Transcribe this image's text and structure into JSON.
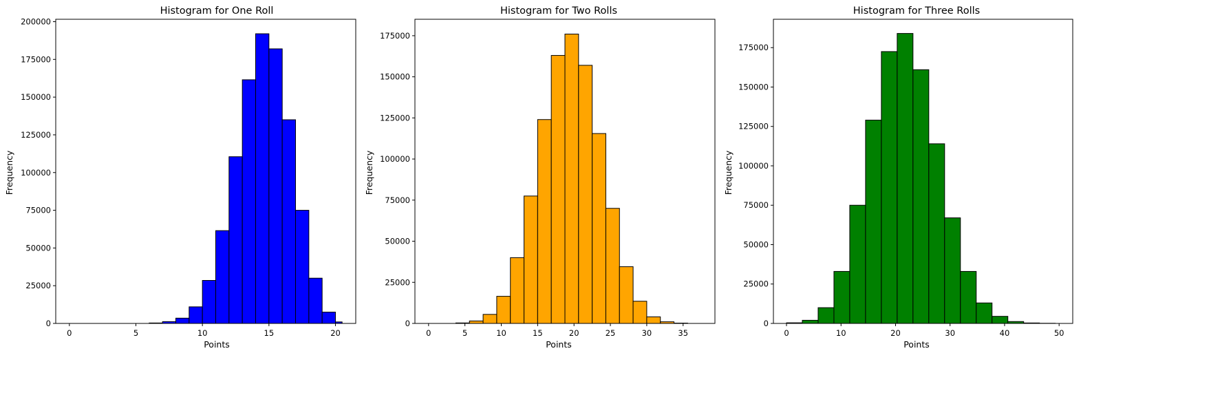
{
  "chart_data": [
    {
      "type": "bar",
      "title": "Histogram for One Roll",
      "xlabel": "Points",
      "ylabel": "Frequency",
      "color": "#0000ff",
      "edgecolor": "#000000",
      "xlim": [
        -1.025,
        21.525
      ],
      "ylim": [
        0,
        201600
      ],
      "xticks": [
        0,
        5,
        10,
        15,
        20
      ],
      "yticks": [
        0,
        25000,
        50000,
        75000,
        100000,
        125000,
        150000,
        175000,
        200000
      ],
      "bin_edges": [
        0,
        1,
        2,
        3,
        4,
        5,
        6,
        7,
        8,
        9,
        10,
        11,
        12,
        13,
        14,
        15,
        16,
        17,
        18,
        19,
        20,
        20.5
      ],
      "values": [
        0,
        0,
        0,
        0,
        0,
        0,
        300,
        1200,
        3500,
        11000,
        28500,
        61500,
        110500,
        161500,
        192000,
        182000,
        135000,
        75000,
        30000,
        7500,
        1000
      ],
      "grid": false
    },
    {
      "type": "bar",
      "title": "Histogram for Two Rolls",
      "xlabel": "Points",
      "ylabel": "Frequency",
      "color": "#ffa500",
      "edgecolor": "#000000",
      "xlim": [
        -1.875,
        39.375
      ],
      "ylim": [
        0,
        185000
      ],
      "xticks": [
        0,
        5,
        10,
        15,
        20,
        25,
        30,
        35
      ],
      "yticks": [
        0,
        25000,
        50000,
        75000,
        100000,
        125000,
        150000,
        175000
      ],
      "bin_edges": [
        0,
        1.875,
        3.75,
        5.625,
        7.5,
        9.375,
        11.25,
        13.125,
        15,
        16.875,
        18.75,
        20.625,
        22.5,
        24.375,
        26.25,
        28.125,
        30,
        31.875,
        33.75,
        35.625,
        37.5
      ],
      "values": [
        0,
        0,
        300,
        1500,
        5500,
        16500,
        40000,
        77500,
        124000,
        163000,
        176000,
        157000,
        115500,
        70000,
        34500,
        13500,
        4000,
        1000,
        200,
        0
      ],
      "grid": false
    },
    {
      "type": "bar",
      "title": "Histogram for Three Rolls",
      "xlabel": "Points",
      "ylabel": "Frequency",
      "color": "#008000",
      "edgecolor": "#000000",
      "xlim": [
        -2.4,
        52.5
      ],
      "ylim": [
        0,
        193000
      ],
      "xticks": [
        0,
        10,
        20,
        30,
        40,
        50
      ],
      "yticks": [
        0,
        25000,
        50000,
        75000,
        100000,
        125000,
        150000,
        175000
      ],
      "bin_edges": [
        0,
        2.9,
        5.8,
        8.7,
        11.6,
        14.5,
        17.4,
        20.3,
        23.2,
        26.1,
        29,
        31.9,
        34.8,
        37.7,
        40.6,
        43.5,
        46.4,
        49.3
      ],
      "values": [
        400,
        2000,
        10000,
        33000,
        75000,
        129000,
        172500,
        184000,
        161000,
        114000,
        67000,
        33000,
        13000,
        4500,
        1200,
        300,
        100
      ],
      "grid": false
    }
  ]
}
